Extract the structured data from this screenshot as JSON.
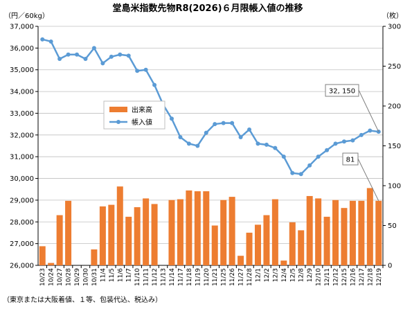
{
  "chart_data": {
    "type": "bar_line",
    "title": "堂島米指数先物R8(2026)６月限帳入値の推移",
    "y_label": "（円／60kg）",
    "y2_label": "（枚）",
    "footnote": "（東京または大阪着値、１等、包装代込、税込み）",
    "categories": [
      "10/23",
      "10/24",
      "10/27",
      "10/28",
      "10/29",
      "10/30",
      "10/31",
      "11/4",
      "11/5",
      "11/6",
      "11/7",
      "11/10",
      "11/11",
      "11/12",
      "11/13",
      "11/14",
      "11/17",
      "11/18",
      "11/19",
      "11/20",
      "11/21",
      "11/25",
      "11/26",
      "11/27",
      "11/28",
      "12/1",
      "12/2",
      "12/3",
      "12/4",
      "12/5",
      "12/8",
      "12/9",
      "12/10",
      "12/11",
      "12/12",
      "12/15",
      "12/16",
      "12/17",
      "12/18",
      "12/19"
    ],
    "series": [
      {
        "name": "出来高",
        "type": "bar",
        "axis": "y2",
        "color": "#ED7D31",
        "values": [
          24,
          3,
          63,
          81,
          0,
          0,
          20,
          74,
          76,
          99,
          61,
          73,
          84,
          77,
          0,
          82,
          83,
          94,
          93,
          93,
          50,
          82,
          86,
          12,
          41,
          51,
          63,
          83,
          6,
          54,
          44,
          87,
          84,
          61,
          82,
          72,
          81,
          81,
          97,
          81
        ],
        "value_labels": [
          null,
          null,
          null,
          null,
          null,
          null,
          null,
          null,
          null,
          null,
          null,
          null,
          null,
          null,
          null,
          null,
          null,
          null,
          null,
          null,
          null,
          null,
          null,
          null,
          null,
          null,
          null,
          null,
          null,
          null,
          null,
          null,
          null,
          null,
          null,
          null,
          null,
          null,
          null,
          "81"
        ]
      },
      {
        "name": "帳入値",
        "type": "line",
        "color": "#5B9BD5",
        "values": [
          36400,
          36300,
          35500,
          35700,
          35700,
          35500,
          36000,
          35300,
          35600,
          35700,
          35650,
          34950,
          35000,
          34300,
          33400,
          32750,
          31900,
          31600,
          31500,
          32100,
          32500,
          32550,
          32550,
          31900,
          32250,
          31600,
          31550,
          31400,
          31000,
          30250,
          30200,
          30600,
          31000,
          31300,
          31600,
          31700,
          31750,
          32000,
          32200,
          32150
        ],
        "value_labels": [
          null,
          null,
          null,
          null,
          null,
          null,
          null,
          null,
          null,
          null,
          null,
          null,
          null,
          null,
          null,
          null,
          null,
          null,
          null,
          null,
          null,
          null,
          null,
          null,
          null,
          null,
          null,
          null,
          null,
          null,
          null,
          null,
          null,
          null,
          null,
          null,
          null,
          null,
          null,
          "32, 150"
        ]
      }
    ],
    "ylim": [
      26000,
      37000
    ],
    "yticks": [
      {
        "value": 26000,
        "label": "26,000"
      },
      {
        "value": 27000,
        "label": "27,000"
      },
      {
        "value": 28000,
        "label": "28,000"
      },
      {
        "value": 29000,
        "label": "29,000"
      },
      {
        "value": 30000,
        "label": "30,000"
      },
      {
        "value": 31000,
        "label": "31,000"
      },
      {
        "value": 32000,
        "label": "32,000"
      },
      {
        "value": 33000,
        "label": "33,000"
      },
      {
        "value": 34000,
        "label": "34,000"
      },
      {
        "value": 35000,
        "label": "35,000"
      },
      {
        "value": 36000,
        "label": "36,000"
      },
      {
        "value": 37000,
        "label": "37,000"
      }
    ],
    "y2lim": [
      0,
      300
    ],
    "y2ticks": [
      0,
      50,
      100,
      150,
      200,
      250,
      300
    ],
    "grid": true
  }
}
